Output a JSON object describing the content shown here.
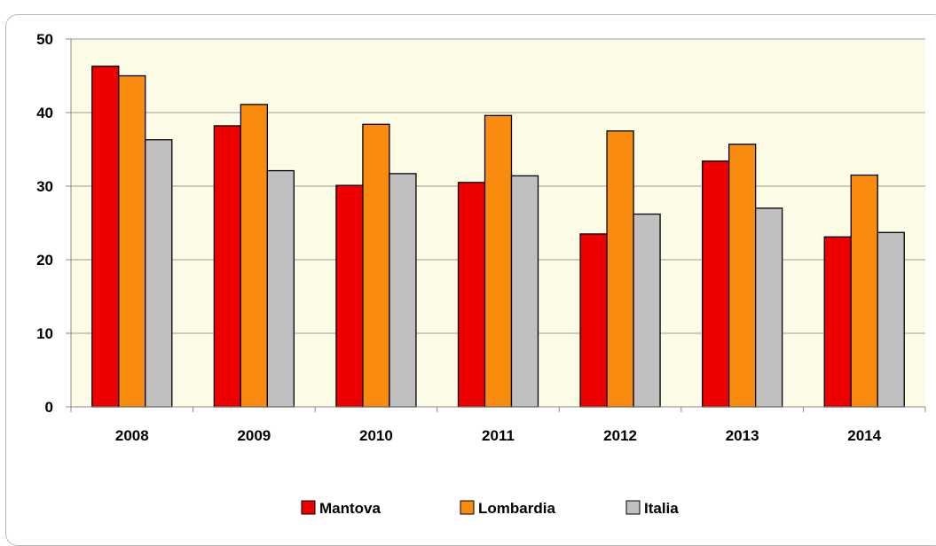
{
  "chart_data": {
    "type": "bar",
    "categories": [
      "2008",
      "2009",
      "2010",
      "2011",
      "2012",
      "2013",
      "2014"
    ],
    "series": [
      {
        "name": "Mantova",
        "color": "#ee0000",
        "values": [
          46.3,
          38.2,
          30.1,
          30.5,
          23.5,
          33.4,
          23.1
        ]
      },
      {
        "name": "Lombardia",
        "color": "#f98b0f",
        "values": [
          45.0,
          41.1,
          38.4,
          39.6,
          37.5,
          35.7,
          31.5
        ]
      },
      {
        "name": "Italia",
        "color": "#c0c0c0",
        "values": [
          36.3,
          32.1,
          31.7,
          31.4,
          26.2,
          27.0,
          23.7
        ]
      }
    ],
    "ylim": [
      0,
      50
    ],
    "yticks": [
      0,
      10,
      20,
      30,
      40,
      50
    ],
    "grid": true,
    "plot_background": "#fcfce6",
    "legend_position": "bottom-center"
  }
}
